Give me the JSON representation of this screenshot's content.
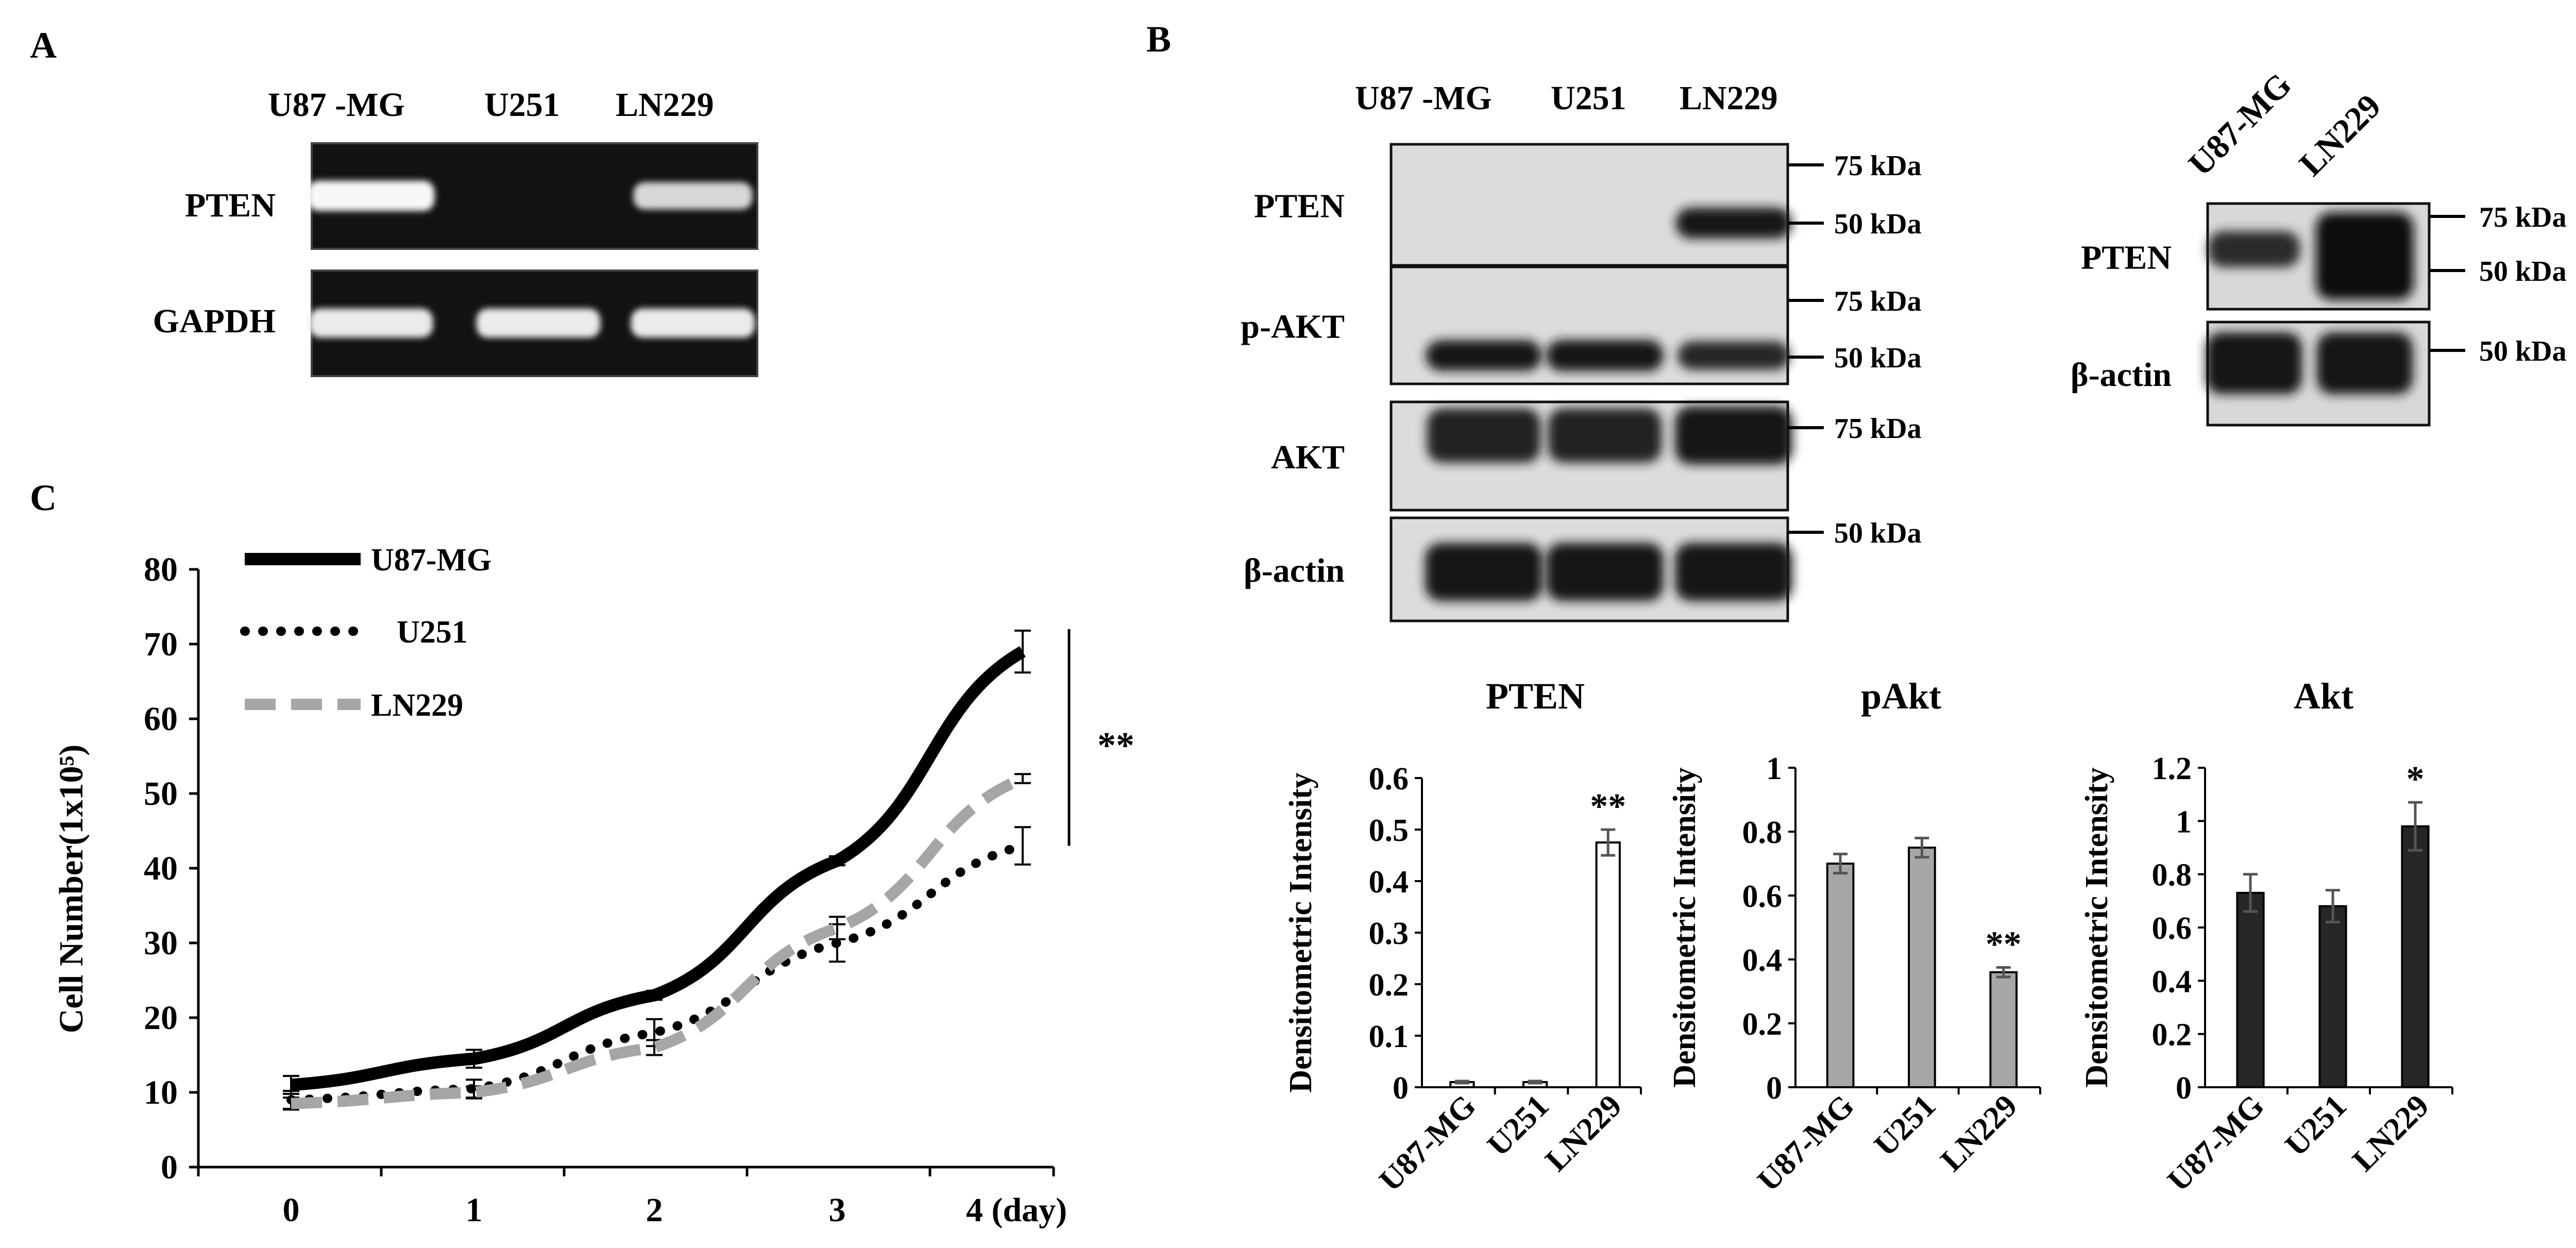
{
  "panels": {
    "A": {
      "letter": "A",
      "lanes": [
        "U87 -MG",
        "U251",
        "LN229"
      ],
      "rows": [
        {
          "label": "PTEN",
          "bands": [
            0.95,
            0.0,
            0.7
          ]
        },
        {
          "label": "GAPDH",
          "bands": [
            0.85,
            0.85,
            0.85
          ]
        }
      ]
    },
    "B": {
      "letter": "B",
      "lanes": [
        "U87 -MG",
        "U251",
        "LN229"
      ],
      "rows": [
        {
          "label": "PTEN",
          "bands": [
            0.0,
            0.0,
            0.9
          ],
          "markers": [
            "75 kDa",
            "50 kDa"
          ]
        },
        {
          "label": "p-AKT",
          "bands": [
            0.9,
            0.95,
            0.75
          ],
          "markers": [
            "75 kDa",
            "50 kDa"
          ]
        },
        {
          "label": "AKT",
          "bands": [
            0.8,
            0.8,
            0.95
          ],
          "markers": [
            "75 kDa"
          ]
        },
        {
          "label": "β-actin",
          "bands": [
            0.95,
            0.95,
            0.95
          ],
          "markers": [
            "50 kDa"
          ]
        }
      ],
      "side_blot": {
        "lanes": [
          "U87-MG",
          "LN229"
        ],
        "rows": [
          {
            "label": "PTEN",
            "bands": [
              0.7,
              1.0
            ],
            "markers": [
              "75 kDa",
              "50 kDa"
            ]
          },
          {
            "label": "β-actin",
            "bands": [
              0.9,
              0.9
            ],
            "markers": [
              "50 kDa"
            ]
          }
        ]
      }
    },
    "C": {
      "letter": "C",
      "significance": "**"
    }
  },
  "chart_data": [
    {
      "type": "line",
      "title": "",
      "xlabel": "",
      "ylabel": "Cell Number(1x10⁵)",
      "x_ticks": [
        "0",
        "1",
        "2",
        "3",
        "4 (day)"
      ],
      "x": [
        0,
        1,
        2,
        3,
        4
      ],
      "ylim": [
        0,
        80
      ],
      "y_ticks": [
        "0",
        "10",
        "20",
        "30",
        "40",
        "50",
        "60",
        "70",
        "80"
      ],
      "series": [
        {
          "name": "U87-MG",
          "values": [
            11,
            14.5,
            23,
            41,
            69
          ],
          "errors": [
            1.2,
            1.2,
            0.6,
            0.6,
            2.8
          ],
          "color": "#000000",
          "style": "solid"
        },
        {
          "name": "U251",
          "values": [
            9,
            10.5,
            18,
            30,
            43
          ],
          "errors": [
            1.2,
            1.2,
            1.8,
            2.5,
            2.5
          ],
          "color": "#000000",
          "style": "dotted"
        },
        {
          "name": "LN229",
          "values": [
            8.5,
            10,
            16,
            32,
            52
          ],
          "errors": [
            0.8,
            0.8,
            1.0,
            1.5,
            0.6
          ],
          "color": "#a6a6a6",
          "style": "dashed"
        }
      ],
      "legend": "top-left",
      "grid": false
    },
    {
      "type": "bar",
      "title": "PTEN",
      "ylabel": "Densitometric Intensity",
      "categories": [
        "U87-MG",
        "U251",
        "LN229"
      ],
      "values": [
        0.01,
        0.01,
        0.475
      ],
      "errors": [
        0.002,
        0.002,
        0.025
      ],
      "annotations": [
        "",
        "",
        "**"
      ],
      "ylim": [
        0,
        0.6
      ],
      "y_ticks": [
        "0",
        "0.1",
        "0.2",
        "0.3",
        "0.4",
        "0.5",
        "0.6"
      ],
      "bar_color": "#ffffff"
    },
    {
      "type": "bar",
      "title": "pAkt",
      "ylabel": "Densitometric Intensity",
      "categories": [
        "U87-MG",
        "U251",
        "LN229"
      ],
      "values": [
        0.7,
        0.75,
        0.36
      ],
      "errors": [
        0.03,
        0.03,
        0.015
      ],
      "annotations": [
        "",
        "",
        "**"
      ],
      "ylim": [
        0,
        1
      ],
      "y_ticks": [
        "0",
        "0.2",
        "0.4",
        "0.6",
        "0.8",
        "1"
      ],
      "bar_color": "#a6a6a6"
    },
    {
      "type": "bar",
      "title": "Akt",
      "ylabel": "Densitometric Intensity",
      "categories": [
        "U87-MG",
        "U251",
        "LN229"
      ],
      "values": [
        0.73,
        0.68,
        0.98
      ],
      "errors": [
        0.07,
        0.06,
        0.09
      ],
      "annotations": [
        "",
        "",
        "*"
      ],
      "ylim": [
        0,
        1.2
      ],
      "y_ticks": [
        "0",
        "0.2",
        "0.4",
        "0.6",
        "0.8",
        "1",
        "1.2"
      ],
      "bar_color": "#262626"
    }
  ]
}
